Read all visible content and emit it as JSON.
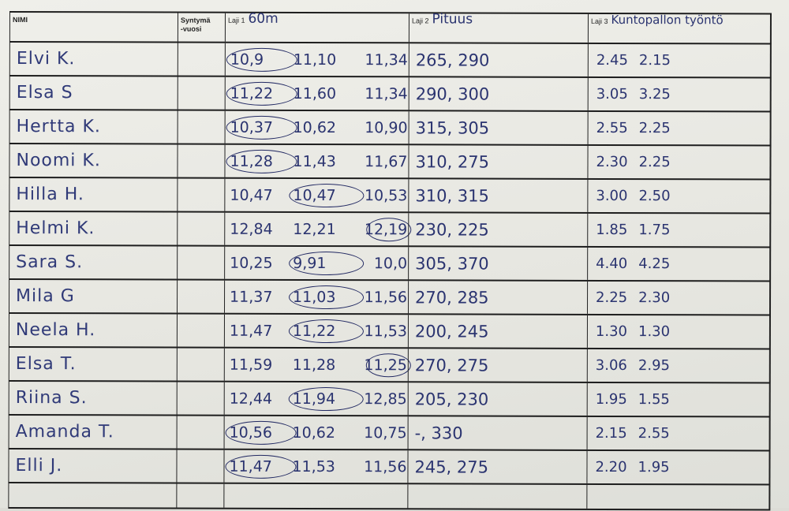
{
  "header": {
    "name": "NIMI",
    "birth_year": "Syntymä-vuosi",
    "event1_label": "Laji 1",
    "event1_name": "60m",
    "event2_label": "Laji 2",
    "event2_name": "Pituus",
    "event3_label": "Laji 3",
    "event3_name": "Kuntopallon työntö"
  },
  "rows": [
    {
      "name": "Elvi K.",
      "laji1": [
        "10,9",
        "11,10",
        "11,34"
      ],
      "circled": 0,
      "laji2": "265, 290",
      "laji3": [
        "2.45",
        "2.15"
      ]
    },
    {
      "name": "Elsa S",
      "laji1": [
        "11,22",
        "11,60",
        "11,34"
      ],
      "circled": 0,
      "laji2": "290, 300",
      "laji3": [
        "3.05",
        "3.25"
      ]
    },
    {
      "name": "Hertta K.",
      "laji1": [
        "10,37",
        "10,62",
        "10,90"
      ],
      "circled": 0,
      "laji2": "315, 305",
      "laji3": [
        "2.55",
        "2.25"
      ]
    },
    {
      "name": "Noomi K.",
      "laji1": [
        "11,28",
        "11,43",
        "11,67"
      ],
      "circled": 0,
      "laji2": "310, 275",
      "laji3": [
        "2.30",
        "2.25"
      ]
    },
    {
      "name": "Hilla H.",
      "laji1": [
        "10,47",
        "10,47",
        "10,53"
      ],
      "circled": 1,
      "laji2": "310, 315",
      "laji3": [
        "3.00",
        "2.50"
      ]
    },
    {
      "name": "Helmi K.",
      "laji1": [
        "12,84",
        "12,21",
        "12,19"
      ],
      "circled": 2,
      "laji2": "230, 225",
      "laji3": [
        "1.85",
        "1.75"
      ]
    },
    {
      "name": "Sara S.",
      "laji1": [
        "10,25",
        "9,91",
        "10,0"
      ],
      "circled": 1,
      "laji2": "305, 370",
      "laji3": [
        "4.40",
        "4.25"
      ]
    },
    {
      "name": "Mila G",
      "laji1": [
        "11,37",
        "11,03",
        "11,56"
      ],
      "circled": 1,
      "laji2": "270, 285",
      "laji3": [
        "2.25",
        "2.30"
      ]
    },
    {
      "name": "Neela H.",
      "laji1": [
        "11,47",
        "11,22",
        "11,53"
      ],
      "circled": 1,
      "laji2": "200, 245",
      "laji3": [
        "1.30",
        "1.30"
      ]
    },
    {
      "name": "Elsa T.",
      "laji1": [
        "11,59",
        "11,28",
        "11,25"
      ],
      "circled": 2,
      "laji2": "270, 275",
      "laji3": [
        "3.06",
        "2.95"
      ]
    },
    {
      "name": "Riina S.",
      "laji1": [
        "12,44",
        "11,94",
        "12,85"
      ],
      "circled": 1,
      "laji2": "205, 230",
      "laji3": [
        "1.95",
        "1.55"
      ]
    },
    {
      "name": "Amanda T.",
      "laji1": [
        "10,56",
        "10,62",
        "10,75"
      ],
      "circled": 0,
      "laji2": "-, 330",
      "laji3": [
        "2.15",
        "2.55"
      ]
    },
    {
      "name": "Elli J.",
      "laji1": [
        "11,47",
        "11,53",
        "11,56"
      ],
      "circled": 0,
      "laji2": "245, 275",
      "laji3": [
        "2.20",
        "1.95"
      ]
    }
  ],
  "colors": {
    "ink": "#2b3470",
    "paper": "#e9e9e3",
    "lines": "#1e1e1e"
  }
}
